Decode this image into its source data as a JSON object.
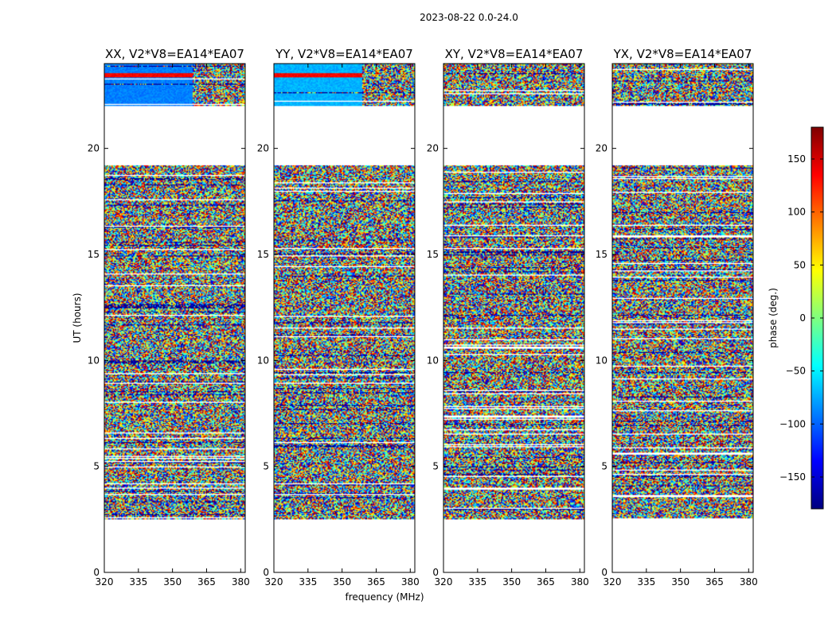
{
  "figure": {
    "suptitle": "2023-08-22 0.0-24.0"
  },
  "chart_data": {
    "type": "heatmap",
    "xlabel": "frequency (MHz)",
    "ylabel": "UT (hours)",
    "xlim": [
      320,
      382
    ],
    "ylim": [
      0,
      24
    ],
    "xticks": [
      320,
      335,
      350,
      365,
      380
    ],
    "yticks": [
      0,
      5,
      10,
      15,
      20
    ],
    "colorbar": {
      "label": "phase (deg.)",
      "range": [
        -180,
        180
      ],
      "ticks": [
        -150,
        -100,
        -50,
        0,
        50,
        100,
        150
      ],
      "colormap": "jet",
      "colormap_stops": [
        "#00007f",
        "#0000ff",
        "#007fff",
        "#00ffff",
        "#7fff7f",
        "#ffff00",
        "#ff7f00",
        "#ff0000",
        "#7f0000"
      ]
    },
    "data_ut_ranges": [
      [
        2.5,
        19.2
      ],
      [
        22.0,
        24.0
      ]
    ],
    "panels": [
      {
        "title": "XX, V2*V8=EA14*EA07",
        "pol": "XX"
      },
      {
        "title": "YY, V2*V8=EA14*EA07",
        "pol": "YY"
      },
      {
        "title": "XY, V2*V8=EA14*EA07",
        "pol": "XY"
      },
      {
        "title": "YX, V2*V8=EA14*EA07",
        "pol": "YX"
      }
    ]
  }
}
